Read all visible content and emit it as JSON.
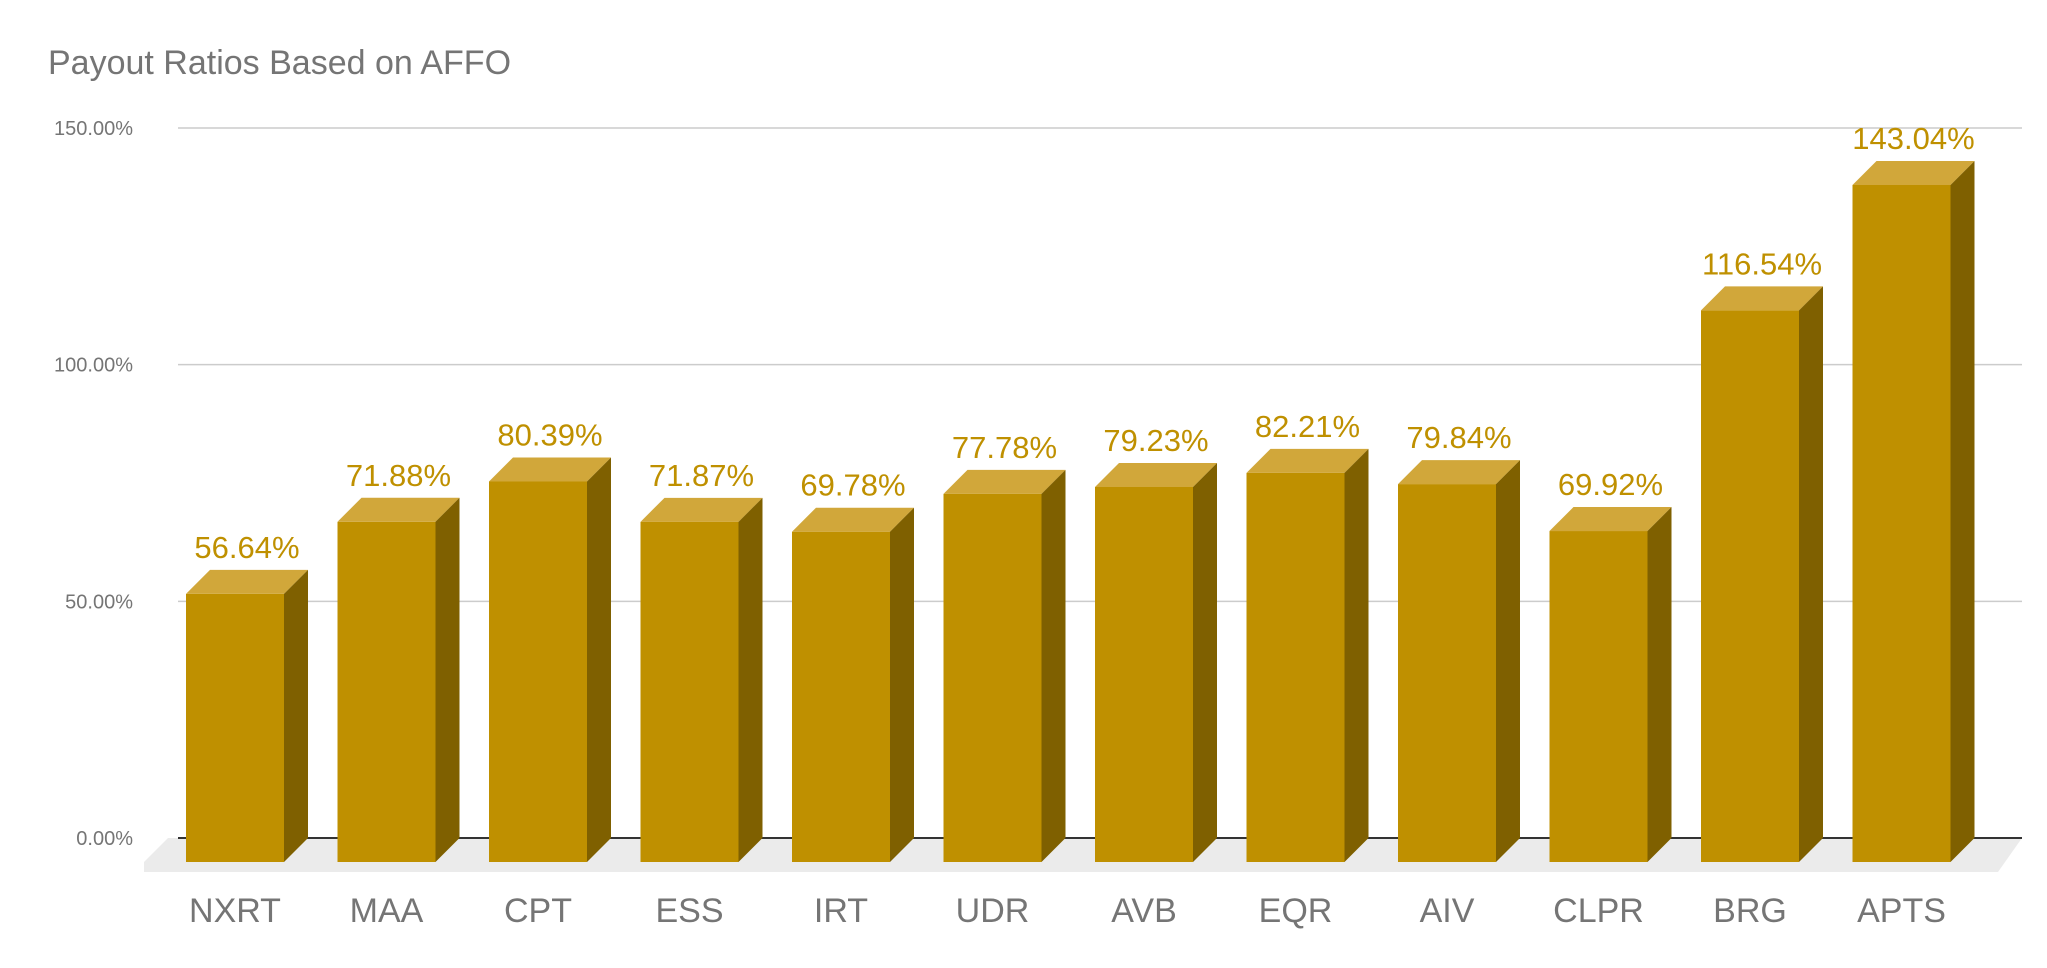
{
  "chart_data": {
    "type": "bar",
    "title": "Payout Ratios Based on AFFO",
    "xlabel": "",
    "ylabel": "",
    "categories": [
      "NXRT",
      "MAA",
      "CPT",
      "ESS",
      "IRT",
      "UDR",
      "AVB",
      "EQR",
      "AIV",
      "CLPR",
      "BRG",
      "APTS"
    ],
    "values": [
      56.64,
      71.88,
      80.39,
      71.87,
      69.78,
      77.78,
      79.23,
      82.21,
      79.84,
      69.92,
      116.54,
      143.04
    ],
    "data_labels": [
      "56.64%",
      "71.88%",
      "80.39%",
      "71.87%",
      "69.78%",
      "77.78%",
      "79.23%",
      "82.21%",
      "79.84%",
      "69.92%",
      "116.54%",
      "143.04%"
    ],
    "ylim": [
      0,
      150
    ],
    "y_ticks": [
      0,
      50,
      100,
      150
    ],
    "y_tick_labels": [
      "0.00%",
      "50.00%",
      "100.00%",
      "150.00%"
    ],
    "grid": true,
    "legend": "none",
    "style": "3d-bar",
    "colors": {
      "bar_front": "#BF9000",
      "bar_top": "#D1A73A",
      "bar_side": "#7F6000",
      "data_label": "#BF9000",
      "axis_label": "#757575",
      "gridline": "#CCCCCC",
      "floor": "#EBEBEB",
      "baseline": "#333333"
    }
  }
}
